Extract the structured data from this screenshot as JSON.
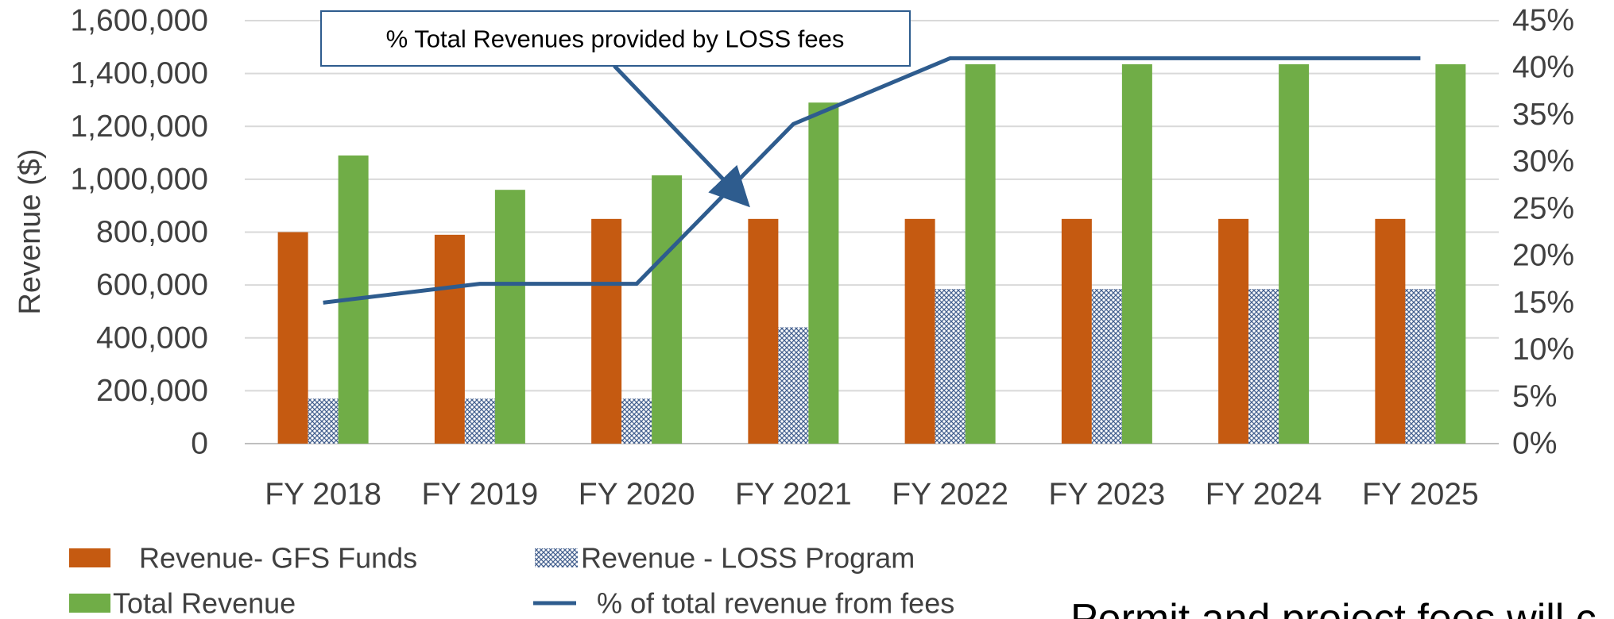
{
  "chart_data": {
    "type": "bar",
    "y_label": "Revenue ($)",
    "annotation": "% Total Revenues provided by LOSS fees",
    "footer_text": "Permit and project fees will c",
    "categories": [
      "FY 2018",
      "FY 2019",
      "FY 2020",
      "FY 2021",
      "FY 2022",
      "FY 2023",
      "FY 2024",
      "FY 2025"
    ],
    "series": [
      {
        "name": "Revenue- GFS Funds",
        "color": "#c55a11",
        "values": [
          800000,
          790000,
          850000,
          850000,
          850000,
          850000,
          850000,
          850000
        ]
      },
      {
        "name": "Revenue - LOSS Program",
        "color": "#44608f",
        "pattern": "crosshatch",
        "values": [
          170000,
          170000,
          170000,
          440000,
          585000,
          585000,
          585000,
          585000
        ]
      },
      {
        "name": "Total Revenue",
        "color": "#70ad47",
        "values": [
          1090000,
          960000,
          1015000,
          1290000,
          1435000,
          1435000,
          1435000,
          1435000
        ]
      },
      {
        "name": "% of total revenue from fees",
        "color": "#2e5c8e",
        "type": "line",
        "axis": "y2",
        "values": [
          15,
          17,
          17,
          34,
          41,
          41,
          41,
          41
        ]
      }
    ],
    "ylim": [
      0,
      1600000
    ],
    "yticks": [
      0,
      {
        "value": 200000,
        "label": "200,000"
      },
      {
        "value": 400000,
        "label": "400,000"
      },
      {
        "value": 600000,
        "label": "600,000"
      },
      {
        "value": 800000,
        "label": "800,000"
      },
      {
        "value": 1000000,
        "label": "1,000,000"
      },
      {
        "value": 1200000,
        "label": "1,200,000"
      },
      {
        "value": 1400000,
        "label": "1,400,000"
      },
      {
        "value": 1600000,
        "label": "1,600,000"
      }
    ],
    "y2lim": [
      0,
      45
    ],
    "y2ticks": [
      {
        "value": 0,
        "label": "0%"
      },
      {
        "value": 5,
        "label": "5%"
      },
      {
        "value": 10,
        "label": "10%"
      },
      {
        "value": 15,
        "label": "15%"
      },
      {
        "value": 20,
        "label": "20%"
      },
      {
        "value": 25,
        "label": "25%"
      },
      {
        "value": 30,
        "label": "30%"
      },
      {
        "value": 35,
        "label": "35%"
      },
      {
        "value": 40,
        "label": "40%"
      },
      {
        "value": 45,
        "label": "45%"
      }
    ],
    "grid": true
  }
}
